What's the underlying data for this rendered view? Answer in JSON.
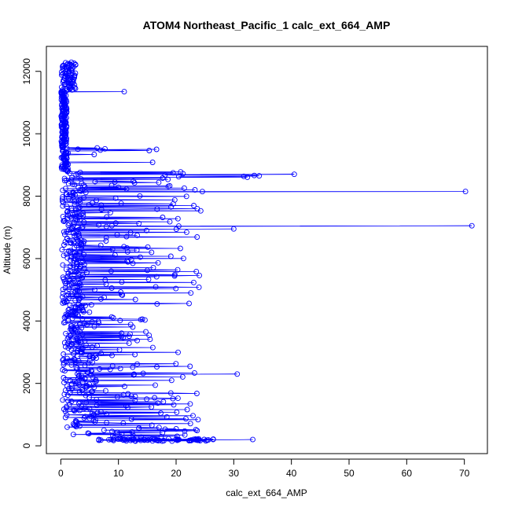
{
  "chart_data": {
    "type": "scatter",
    "title": "ATOM4 Northeast_Pacific_1 calc_ext_664_AMP",
    "xlabel": "calc_ext_664_AMP",
    "ylabel": "Altitude (m)",
    "xlim": [
      -2.5,
      74
    ],
    "ylim": [
      -250,
      12800
    ],
    "xticks": [
      0,
      10,
      20,
      30,
      40,
      50,
      60,
      70
    ],
    "yticks": [
      0,
      2000,
      4000,
      6000,
      8000,
      10000,
      12000
    ],
    "grid": false,
    "legend": "none",
    "style": "points connected by lines (type='o')",
    "series_color": "#0000ff",
    "notable_points": [
      {
        "x": 33.3,
        "y": 200
      },
      {
        "x": 30.6,
        "y": 2300
      },
      {
        "x": 40.5,
        "y": 8700
      },
      {
        "x": 70.2,
        "y": 8150
      },
      {
        "x": 71.3,
        "y": 7050
      },
      {
        "x": 30.0,
        "y": 6950
      },
      {
        "x": 11.0,
        "y": 11350
      },
      {
        "x": 16.6,
        "y": 9500
      },
      {
        "x": 4.6,
        "y": 12350
      }
    ]
  }
}
